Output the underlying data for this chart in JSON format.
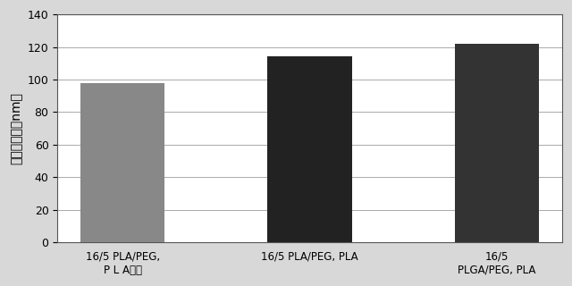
{
  "categories": [
    "16/5 PLA/PEG,\nP L Aなし",
    "16/5 PLA/PEG, PLA",
    "16/5\nPLGA/PEG, PLA"
  ],
  "values": [
    98,
    114,
    122
  ],
  "bar_colors": [
    "#888888",
    "#222222",
    "#333333"
  ],
  "ylabel": "ナノ粒子径（nm）",
  "ylim": [
    0,
    140
  ],
  "yticks": [
    0,
    20,
    40,
    60,
    80,
    100,
    120,
    140
  ],
  "bar_width": 0.45,
  "figure_bg_color": "#d8d8d8",
  "plot_bg_color": "#ffffff",
  "grid_color": "#aaaaaa",
  "ylabel_fontsize": 10,
  "tick_fontsize": 9,
  "xlabel_fontsize": 8.5
}
